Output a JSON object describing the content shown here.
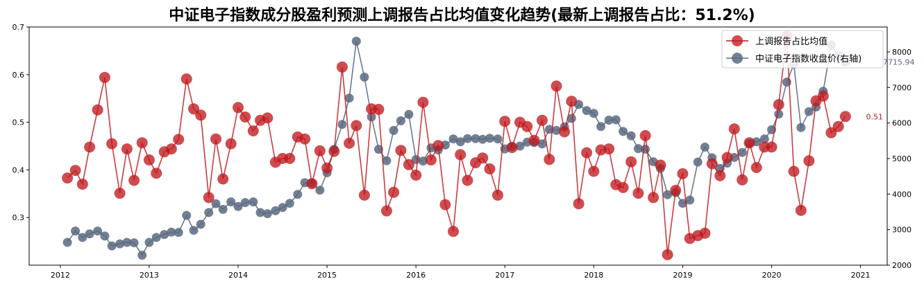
{
  "chart_data": {
    "type": "line",
    "title": "中证电子指数成分股盈利预测上调报告占比均值变化趋势(最新上调报告占比：51.2%)",
    "xlabel": "",
    "ylabel": "",
    "grid": false,
    "legend_position": "top-right",
    "x_tick_labels": [
      "2012",
      "2013",
      "2014",
      "2015",
      "2016",
      "2017",
      "2018",
      "2019",
      "2020",
      "2021"
    ],
    "x_range": [
      2011.65,
      2021.3
    ],
    "y_left": {
      "ylim": [
        0.2,
        0.7
      ],
      "ticks": [
        0.3,
        0.4,
        0.5,
        0.6,
        0.7
      ],
      "tick_labels": [
        "0.3",
        "0.4",
        "0.5",
        "0.6",
        "0.7"
      ]
    },
    "y_right": {
      "ylim": [
        2000,
        8700
      ],
      "ticks": [
        2000,
        3000,
        4000,
        5000,
        6000,
        7000,
        8000
      ],
      "tick_labels": [
        "2000",
        "3000",
        "4000",
        "5000",
        "6000",
        "7000",
        "8000"
      ]
    },
    "colors": {
      "series1": "#c0191f",
      "series2": "#5a6a80"
    },
    "series": [
      {
        "name": "上调报告占比均值",
        "axis": "left",
        "x": [
          2012.08,
          2012.17,
          2012.25,
          2012.33,
          2012.42,
          2012.5,
          2012.58,
          2012.67,
          2012.75,
          2012.83,
          2012.92,
          2013.0,
          2013.08,
          2013.17,
          2013.25,
          2013.33,
          2013.42,
          2013.5,
          2013.58,
          2013.67,
          2013.75,
          2013.83,
          2013.92,
          2014.0,
          2014.08,
          2014.17,
          2014.25,
          2014.33,
          2014.42,
          2014.5,
          2014.58,
          2014.67,
          2014.75,
          2014.83,
          2014.92,
          2015.0,
          2015.08,
          2015.17,
          2015.25,
          2015.33,
          2015.42,
          2015.5,
          2015.58,
          2015.67,
          2015.75,
          2015.83,
          2015.92,
          2016.0,
          2016.08,
          2016.17,
          2016.25,
          2016.33,
          2016.42,
          2016.5,
          2016.58,
          2016.67,
          2016.75,
          2016.83,
          2016.92,
          2017.0,
          2017.08,
          2017.17,
          2017.25,
          2017.33,
          2017.42,
          2017.5,
          2017.58,
          2017.67,
          2017.75,
          2017.83,
          2017.92,
          2018.0,
          2018.08,
          2018.17,
          2018.25,
          2018.33,
          2018.42,
          2018.5,
          2018.58,
          2018.67,
          2018.75,
          2018.83,
          2018.92,
          2019.0,
          2019.08,
          2019.17,
          2019.25,
          2019.33,
          2019.42,
          2019.5,
          2019.58,
          2019.67,
          2019.75,
          2019.83,
          2019.92,
          2020.0,
          2020.08,
          2020.17,
          2020.25,
          2020.33,
          2020.42,
          2020.5,
          2020.58,
          2020.67,
          2020.75,
          2020.83
        ],
        "values": [
          0.383,
          0.399,
          0.37,
          0.448,
          0.526,
          0.594,
          0.455,
          0.351,
          0.444,
          0.378,
          0.457,
          0.421,
          0.393,
          0.438,
          0.444,
          0.464,
          0.591,
          0.528,
          0.515,
          0.342,
          0.465,
          0.381,
          0.455,
          0.531,
          0.511,
          0.482,
          0.504,
          0.509,
          0.416,
          0.424,
          0.424,
          0.469,
          0.465,
          0.371,
          0.44,
          0.404,
          0.439,
          0.616,
          0.456,
          0.493,
          0.347,
          0.528,
          0.527,
          0.314,
          0.353,
          0.441,
          0.411,
          0.389,
          0.542,
          0.421,
          0.451,
          0.327,
          0.271,
          0.432,
          0.378,
          0.415,
          0.425,
          0.402,
          0.347,
          0.502,
          0.447,
          0.5,
          0.491,
          0.462,
          0.504,
          0.422,
          0.576,
          0.48,
          0.544,
          0.329,
          0.436,
          0.397,
          0.442,
          0.444,
          0.369,
          0.363,
          0.417,
          0.351,
          0.472,
          0.342,
          0.41,
          0.222,
          0.357,
          0.392,
          0.256,
          0.262,
          0.267,
          0.413,
          0.388,
          0.426,
          0.486,
          0.379,
          0.457,
          0.405,
          0.448,
          0.448,
          0.537,
          0.68,
          0.397,
          0.315,
          0.419,
          0.545,
          0.555,
          0.478,
          0.491,
          0.512
        ]
      },
      {
        "name": "中证电子指数收盘价(右轴)",
        "axis": "right",
        "x": [
          2012.08,
          2012.17,
          2012.25,
          2012.33,
          2012.42,
          2012.5,
          2012.58,
          2012.67,
          2012.75,
          2012.83,
          2012.92,
          2013.0,
          2013.08,
          2013.17,
          2013.25,
          2013.33,
          2013.42,
          2013.5,
          2013.58,
          2013.67,
          2013.75,
          2013.83,
          2013.92,
          2014.0,
          2014.08,
          2014.17,
          2014.25,
          2014.33,
          2014.42,
          2014.5,
          2014.58,
          2014.67,
          2014.75,
          2014.83,
          2014.92,
          2015.0,
          2015.08,
          2015.17,
          2015.25,
          2015.33,
          2015.42,
          2015.5,
          2015.58,
          2015.67,
          2015.75,
          2015.83,
          2015.92,
          2016.0,
          2016.08,
          2016.17,
          2016.25,
          2016.33,
          2016.42,
          2016.5,
          2016.58,
          2016.67,
          2016.75,
          2016.83,
          2016.92,
          2017.0,
          2017.08,
          2017.17,
          2017.25,
          2017.33,
          2017.42,
          2017.5,
          2017.58,
          2017.67,
          2017.75,
          2017.83,
          2017.92,
          2018.0,
          2018.08,
          2018.17,
          2018.25,
          2018.33,
          2018.42,
          2018.5,
          2018.58,
          2018.67,
          2018.75,
          2018.83,
          2018.92,
          2019.0,
          2019.08,
          2019.17,
          2019.25,
          2019.33,
          2019.42,
          2019.5,
          2019.58,
          2019.67,
          2019.75,
          2019.83,
          2019.92,
          2020.0,
          2020.08,
          2020.17,
          2020.25,
          2020.33,
          2020.42,
          2020.5,
          2020.58,
          2020.67,
          2020.75,
          2020.83
        ],
        "values": [
          2640,
          2960,
          2780,
          2880,
          2960,
          2820,
          2540,
          2600,
          2640,
          2630,
          2280,
          2640,
          2780,
          2860,
          2930,
          2920,
          3400,
          2980,
          3150,
          3480,
          3730,
          3570,
          3780,
          3650,
          3760,
          3780,
          3480,
          3450,
          3530,
          3620,
          3740,
          3990,
          4320,
          4310,
          4110,
          4600,
          5260,
          5960,
          6700,
          8300,
          7290,
          6170,
          5260,
          4940,
          5790,
          6060,
          6240,
          4970,
          4930,
          5300,
          5240,
          5380,
          5550,
          5470,
          5560,
          5560,
          5540,
          5570,
          5550,
          5270,
          5340,
          5350,
          5460,
          5450,
          5410,
          5820,
          5790,
          5890,
          6130,
          6520,
          6350,
          6270,
          5900,
          6080,
          6090,
          5760,
          5640,
          5280,
          5260,
          4910,
          4720,
          3980,
          4040,
          3740,
          3830,
          4900,
          5320,
          5020,
          4720,
          4870,
          5030,
          5170,
          5420,
          5470,
          5550,
          5810,
          6250,
          7150,
          7650,
          5870,
          6320,
          6450,
          6890,
          8200,
          7900,
          7715.94
        ]
      }
    ],
    "annotations": {
      "left_last_value": "0.51",
      "right_last_value": "7715.94"
    }
  }
}
